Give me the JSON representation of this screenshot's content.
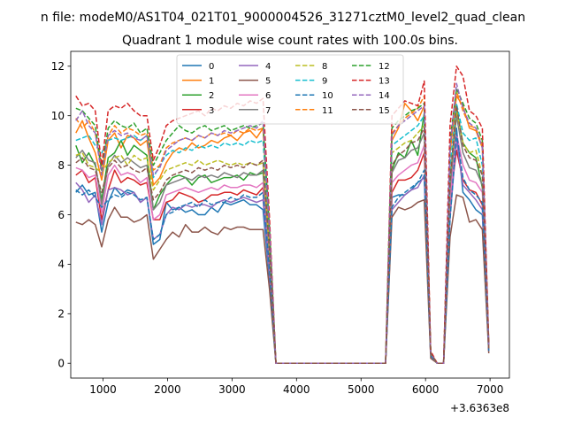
{
  "chart_data": {
    "type": "line",
    "suptitle": "n file: modeM0/AS1T04_021T01_9000004526_31271cztM0_level2_quad_clean",
    "title": "Quadrant 1 module wise count rates with 100.0s bins.",
    "xlabel": "",
    "ylabel": "",
    "x_offset_label": "+3.6363e8",
    "xlim": [
      500,
      7300
    ],
    "ylim": [
      -0.6,
      12.6
    ],
    "xticks": [
      1000,
      2000,
      3000,
      4000,
      5000,
      6000,
      7000
    ],
    "xtick_labels": [
      "1000",
      "2000",
      "3000",
      "4000",
      "5000",
      "6000",
      "7000"
    ],
    "yticks": [
      0,
      2,
      4,
      6,
      8,
      10,
      12
    ],
    "ytick_labels": [
      "0",
      "2",
      "4",
      "6",
      "8",
      "10",
      "12"
    ],
    "legend_position": "top-center",
    "legend_columns": 4,
    "x": [
      580,
      680,
      780,
      880,
      980,
      1080,
      1180,
      1280,
      1380,
      1480,
      1580,
      1680,
      1780,
      1880,
      1980,
      2080,
      2180,
      2280,
      2380,
      2480,
      2580,
      2680,
      2780,
      2880,
      2980,
      3080,
      3180,
      3280,
      3380,
      3480,
      3580,
      3680,
      3780,
      5380,
      5480,
      5580,
      5680,
      5780,
      5880,
      5980,
      6080,
      6180,
      6280,
      6380,
      6480,
      6580,
      6680,
      6780,
      6880,
      6980
    ],
    "series": [
      {
        "name": "0",
        "color": "#1f77b4",
        "dashed": false,
        "values": [
          6.9,
          7.2,
          6.8,
          6.9,
          5.3,
          6.5,
          7.1,
          6.8,
          7.0,
          6.9,
          6.5,
          6.7,
          4.8,
          5.0,
          6.5,
          6.2,
          6.3,
          6.1,
          6.2,
          6.0,
          6.0,
          6.3,
          6.1,
          6.5,
          6.4,
          6.5,
          6.6,
          6.4,
          6.4,
          6.2,
          3.4,
          0,
          0,
          0,
          6.7,
          6.8,
          6.8,
          7.0,
          7.3,
          7.5,
          0.3,
          0,
          0,
          6.0,
          9.5,
          6.9,
          6.6,
          6.2,
          6.0,
          0.6
        ]
      },
      {
        "name": "1",
        "color": "#ff7f0e",
        "dashed": false,
        "values": [
          9.3,
          9.8,
          9.1,
          8.5,
          7.4,
          9.0,
          9.3,
          8.7,
          9.2,
          9.1,
          8.8,
          9.0,
          7.2,
          7.5,
          8.1,
          8.5,
          8.7,
          8.6,
          8.9,
          8.7,
          8.8,
          9.0,
          8.9,
          9.1,
          9.2,
          9.0,
          9.3,
          9.4,
          9.1,
          9.5,
          5.0,
          0,
          0,
          0,
          9.0,
          9.5,
          10.5,
          10.2,
          9.8,
          10.4,
          0.4,
          0,
          0,
          8.5,
          10.8,
          10.4,
          9.5,
          9.4,
          8.7,
          0.7
        ]
      },
      {
        "name": "2",
        "color": "#2ca02c",
        "dashed": false,
        "values": [
          8.8,
          8.1,
          8.5,
          8.0,
          6.6,
          8.3,
          8.5,
          9.0,
          8.4,
          8.8,
          8.6,
          8.4,
          6.2,
          6.8,
          7.2,
          7.5,
          7.6,
          7.5,
          7.2,
          7.5,
          7.6,
          7.3,
          7.4,
          7.5,
          7.5,
          7.6,
          7.4,
          7.7,
          7.6,
          7.7,
          4.5,
          0,
          0,
          0,
          7.8,
          8.5,
          8.3,
          9.0,
          8.4,
          10.1,
          0.4,
          0,
          0,
          6.8,
          10.3,
          8.9,
          8.5,
          8.3,
          7.1,
          0.6
        ]
      },
      {
        "name": "3",
        "color": "#d62728",
        "dashed": false,
        "values": [
          7.6,
          7.8,
          7.3,
          7.5,
          5.8,
          7.0,
          7.8,
          7.3,
          7.5,
          7.4,
          7.2,
          7.3,
          5.8,
          5.8,
          6.5,
          6.6,
          6.9,
          6.8,
          6.7,
          6.5,
          6.6,
          6.8,
          6.8,
          6.9,
          6.9,
          6.8,
          7.0,
          6.9,
          6.8,
          7.1,
          4.0,
          0,
          0,
          0,
          6.9,
          7.4,
          7.4,
          7.5,
          7.8,
          8.5,
          0.3,
          0,
          0,
          6.5,
          8.6,
          7.4,
          7.0,
          6.9,
          6.4,
          0.5
        ]
      },
      {
        "name": "4",
        "color": "#9467bd",
        "dashed": false,
        "values": [
          7.3,
          7.0,
          6.5,
          6.8,
          5.6,
          7.0,
          7.1,
          7.0,
          6.8,
          6.9,
          6.5,
          6.7,
          5.0,
          5.2,
          6.0,
          6.3,
          6.2,
          6.4,
          6.3,
          6.4,
          6.4,
          6.3,
          6.5,
          6.6,
          6.5,
          6.6,
          6.7,
          6.6,
          6.5,
          6.6,
          3.6,
          0,
          0,
          0,
          6.2,
          6.5,
          6.8,
          7.0,
          7.1,
          7.6,
          0.3,
          0,
          0,
          5.9,
          9.0,
          7.2,
          6.9,
          6.6,
          6.2,
          0.5
        ]
      },
      {
        "name": "5",
        "color": "#8c564b",
        "dashed": false,
        "values": [
          5.7,
          5.6,
          5.8,
          5.6,
          4.7,
          5.8,
          6.3,
          5.9,
          5.9,
          5.7,
          5.8,
          6.0,
          4.2,
          4.6,
          5.0,
          5.3,
          5.1,
          5.6,
          5.3,
          5.3,
          5.5,
          5.3,
          5.2,
          5.5,
          5.4,
          5.5,
          5.5,
          5.4,
          5.4,
          5.4,
          3.0,
          0,
          0,
          0,
          5.9,
          6.3,
          6.2,
          6.3,
          6.5,
          6.6,
          0.2,
          0,
          0,
          5.1,
          6.8,
          6.7,
          5.7,
          5.8,
          5.4,
          0.4
        ]
      },
      {
        "name": "6",
        "color": "#e377c2",
        "dashed": false,
        "values": [
          7.9,
          7.8,
          7.5,
          7.6,
          6.1,
          7.6,
          8.0,
          7.6,
          7.7,
          7.6,
          7.3,
          7.5,
          5.8,
          6.0,
          6.8,
          6.9,
          7.0,
          7.1,
          7.0,
          6.9,
          7.0,
          7.1,
          7.0,
          7.2,
          7.1,
          7.1,
          7.2,
          7.2,
          7.1,
          7.3,
          4.2,
          0,
          0,
          0,
          7.3,
          7.6,
          7.8,
          8.0,
          8.1,
          8.8,
          0.3,
          0,
          0,
          6.6,
          9.3,
          8.0,
          7.4,
          7.3,
          6.9,
          0.5
        ]
      },
      {
        "name": "7",
        "color": "#7f7f7f",
        "dashed": false,
        "values": [
          8.3,
          8.6,
          8.2,
          8.1,
          6.4,
          8.0,
          8.4,
          8.1,
          8.3,
          8.1,
          7.9,
          8.0,
          6.2,
          6.5,
          7.2,
          7.3,
          7.4,
          7.5,
          7.4,
          7.6,
          7.5,
          7.6,
          7.5,
          7.7,
          7.6,
          7.5,
          7.7,
          7.6,
          7.6,
          7.8,
          4.4,
          0,
          0,
          0,
          7.7,
          8.2,
          8.3,
          8.6,
          8.7,
          9.3,
          0.3,
          0,
          0,
          7.1,
          10.0,
          8.5,
          7.9,
          7.8,
          7.2,
          0.6
        ]
      },
      {
        "name": "8",
        "color": "#bcbd22",
        "dashed": true,
        "values": [
          8.4,
          8.5,
          8.0,
          7.9,
          7.7,
          8.1,
          8.3,
          8.4,
          8.0,
          8.4,
          8.2,
          8.3,
          7.0,
          7.4,
          7.8,
          7.9,
          8.0,
          8.1,
          8.0,
          8.2,
          8.0,
          8.1,
          8.2,
          8.1,
          8.0,
          8.1,
          8.0,
          8.1,
          8.0,
          8.1,
          4.6,
          0,
          0,
          0,
          8.5,
          8.7,
          8.9,
          9.0,
          9.3,
          9.6,
          0.4,
          0,
          0,
          7.6,
          10.2,
          8.9,
          8.5,
          8.6,
          7.6,
          0.6
        ]
      },
      {
        "name": "9",
        "color": "#17becf",
        "dashed": true,
        "values": [
          9.0,
          9.1,
          9.2,
          8.8,
          8.5,
          9.0,
          9.1,
          9.0,
          9.1,
          9.2,
          9.0,
          9.2,
          7.5,
          8.0,
          8.4,
          8.6,
          8.5,
          8.7,
          8.6,
          8.8,
          8.7,
          8.8,
          8.7,
          8.9,
          8.8,
          8.9,
          8.8,
          9.0,
          8.9,
          9.0,
          5.1,
          0,
          0,
          0,
          8.8,
          9.0,
          9.2,
          9.4,
          9.6,
          10.0,
          0.4,
          0,
          0,
          7.9,
          10.5,
          9.3,
          9.0,
          9.1,
          8.0,
          0.7
        ]
      },
      {
        "name": "10",
        "color": "#1f77b4",
        "dashed": true,
        "values": [
          7.0,
          6.8,
          7.0,
          6.7,
          6.3,
          6.6,
          6.8,
          6.7,
          6.9,
          6.8,
          6.6,
          6.7,
          5.0,
          5.2,
          6.0,
          6.1,
          6.3,
          6.4,
          6.5,
          6.3,
          6.6,
          6.4,
          6.5,
          6.5,
          6.7,
          6.6,
          6.8,
          6.7,
          6.7,
          6.9,
          3.8,
          0,
          0,
          0,
          6.3,
          6.7,
          6.9,
          7.1,
          7.3,
          7.8,
          0.3,
          0,
          0,
          5.8,
          9.3,
          7.5,
          7.0,
          6.8,
          6.5,
          0.5
        ]
      },
      {
        "name": "11",
        "color": "#ff7f0e",
        "dashed": true,
        "values": [
          9.9,
          9.5,
          9.8,
          9.3,
          7.8,
          9.2,
          9.6,
          9.3,
          9.5,
          9.4,
          9.2,
          9.3,
          7.8,
          8.0,
          8.7,
          8.9,
          9.0,
          9.1,
          9.0,
          9.2,
          9.1,
          9.3,
          9.2,
          9.3,
          9.2,
          9.4,
          9.3,
          9.5,
          9.4,
          9.5,
          5.3,
          0,
          0,
          0,
          9.3,
          9.6,
          9.9,
          10.1,
          10.3,
          10.8,
          0.4,
          0,
          0,
          8.8,
          11.0,
          10.2,
          9.6,
          9.5,
          8.8,
          0.7
        ]
      },
      {
        "name": "12",
        "color": "#2ca02c",
        "dashed": true,
        "values": [
          10.3,
          10.2,
          9.9,
          9.6,
          7.8,
          9.5,
          9.8,
          9.6,
          9.5,
          9.7,
          9.3,
          9.5,
          8.0,
          8.5,
          9.0,
          9.3,
          9.6,
          9.4,
          9.3,
          9.5,
          9.6,
          9.4,
          9.5,
          9.6,
          9.4,
          9.5,
          9.6,
          9.5,
          9.6,
          9.7,
          5.5,
          0,
          0,
          0,
          9.5,
          9.8,
          10.0,
          10.2,
          10.3,
          10.5,
          0.4,
          0,
          0,
          9.0,
          11.1,
          10.5,
          9.9,
          9.7,
          9.0,
          0.7
        ]
      },
      {
        "name": "13",
        "color": "#d62728",
        "dashed": true,
        "values": [
          10.8,
          10.4,
          10.5,
          10.2,
          8.0,
          10.2,
          10.4,
          10.3,
          10.5,
          10.2,
          10.0,
          10.0,
          8.2,
          8.8,
          9.6,
          9.8,
          9.9,
          10.0,
          10.1,
          10.2,
          10.0,
          10.3,
          10.2,
          10.4,
          10.3,
          10.5,
          10.4,
          10.6,
          10.5,
          10.7,
          5.9,
          0,
          0,
          0,
          10.0,
          10.3,
          10.6,
          10.5,
          10.4,
          11.4,
          0.5,
          0,
          0,
          9.6,
          12.0,
          11.6,
          10.2,
          10.0,
          9.5,
          0.8
        ]
      },
      {
        "name": "14",
        "color": "#9467bd",
        "dashed": true,
        "values": [
          9.8,
          10.2,
          9.6,
          9.3,
          7.6,
          9.2,
          9.4,
          9.2,
          9.3,
          9.1,
          9.0,
          9.2,
          7.6,
          7.9,
          8.6,
          8.8,
          9.0,
          9.1,
          9.0,
          9.2,
          9.1,
          9.3,
          9.2,
          9.4,
          9.3,
          9.4,
          9.5,
          9.6,
          9.5,
          9.8,
          5.4,
          0,
          0,
          0,
          9.2,
          9.6,
          9.8,
          10.0,
          10.2,
          10.4,
          0.4,
          0,
          0,
          8.7,
          11.3,
          10.3,
          9.7,
          9.5,
          8.7,
          0.7
        ]
      },
      {
        "name": "15",
        "color": "#8c564b",
        "dashed": true,
        "values": [
          8.1,
          8.3,
          7.9,
          7.8,
          6.9,
          7.9,
          8.2,
          7.9,
          8.0,
          7.8,
          7.7,
          7.9,
          6.6,
          6.9,
          7.4,
          7.6,
          7.7,
          7.8,
          7.7,
          7.9,
          7.8,
          7.9,
          7.8,
          8.0,
          7.9,
          8.0,
          7.9,
          8.1,
          8.0,
          8.2,
          4.6,
          0,
          0,
          0,
          8.0,
          8.4,
          8.6,
          8.9,
          9.0,
          9.5,
          0.4,
          0,
          0,
          7.4,
          10.4,
          8.8,
          8.3,
          8.2,
          7.6,
          0.6
        ]
      }
    ]
  }
}
